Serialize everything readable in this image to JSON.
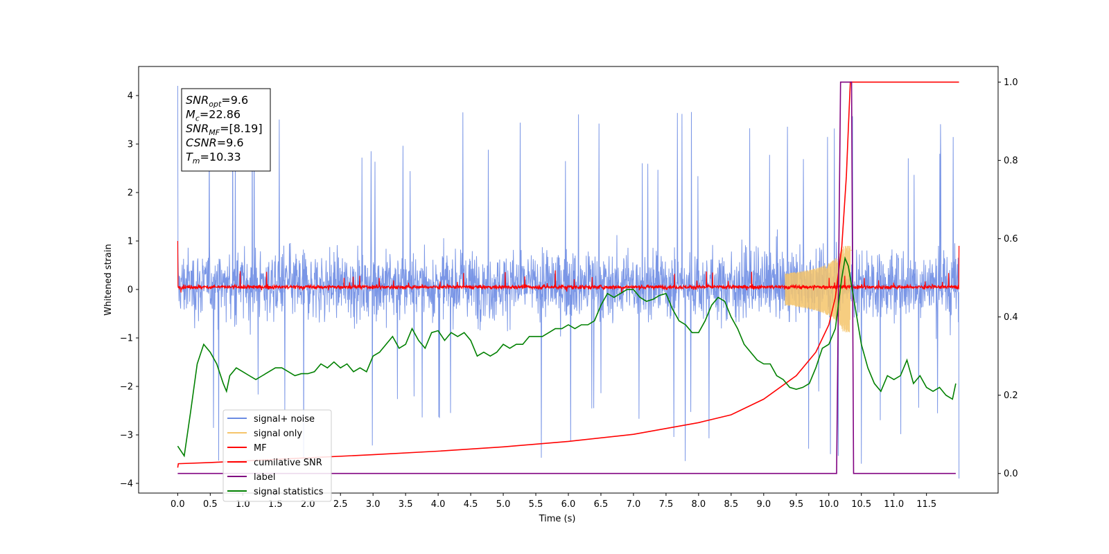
{
  "chart_data": {
    "type": "line",
    "title": "",
    "xlabel": "Time (s)",
    "ylabel_left": "Whitened strain",
    "ylabel_right": "",
    "xlim": [
      -0.6,
      12.6
    ],
    "ylim_left": [
      -4.2,
      4.6
    ],
    "ylim_right": [
      -0.05,
      1.04
    ],
    "x_ticks": [
      0.0,
      0.5,
      1.0,
      1.5,
      2.0,
      2.5,
      3.0,
      3.5,
      4.0,
      4.5,
      5.0,
      5.5,
      6.0,
      6.5,
      7.0,
      7.5,
      8.0,
      8.5,
      9.0,
      9.5,
      10.0,
      10.5,
      11.0,
      11.5
    ],
    "x_tick_labels": [
      "0.0",
      "0.5",
      "1.0",
      "1.5",
      "2.0",
      "2.5",
      "3.0",
      "3.5",
      "4.0",
      "4.5",
      "5.0",
      "5.5",
      "6.0",
      "6.5",
      "7.0",
      "7.5",
      "8.0",
      "8.5",
      "9.0",
      "9.5",
      "10.0",
      "10.5",
      "11.0",
      "11.5"
    ],
    "y_ticks_left": [
      -4,
      -3,
      -2,
      -1,
      0,
      1,
      2,
      3,
      4
    ],
    "y_tick_labels_left": [
      "−4",
      "−3",
      "−2",
      "−1",
      "0",
      "1",
      "2",
      "3",
      "4"
    ],
    "y_ticks_right": [
      0.0,
      0.2,
      0.4,
      0.6,
      0.8,
      1.0
    ],
    "y_tick_labels_right": [
      "0.0",
      "0.2",
      "0.4",
      "0.6",
      "0.8",
      "1.0"
    ],
    "grid": false,
    "legend_position": "lower-left",
    "annotation": {
      "lines": [
        {
          "base": "SNR",
          "sub": "opt",
          "value": "=9.6"
        },
        {
          "base": "M",
          "sub": "c",
          "value": "=22.86"
        },
        {
          "base": "SNR",
          "sub": "MF",
          "value": "=[8.19]"
        },
        {
          "base": "CSNR",
          "sub": "",
          "value": "=9.6"
        },
        {
          "base": "T",
          "sub": "m",
          "value": "=10.33"
        }
      ]
    },
    "series": [
      {
        "name": "signal+ noise",
        "axis": "left",
        "color": "#6b8be3",
        "kind": "noise",
        "x_range": [
          0.0,
          12.0
        ],
        "typical_range": [
          -1.9,
          2.1
        ],
        "extreme_range": [
          -3.9,
          4.2
        ]
      },
      {
        "name": "signal only",
        "axis": "left",
        "color": "#f5c46a",
        "kind": "chirp",
        "merger_time": 10.33,
        "peak_amplitude": 0.9
      },
      {
        "name": "MF",
        "axis": "left",
        "color": "#ff0000",
        "kind": "noise",
        "x_range": [
          0.0,
          12.0
        ],
        "typical_range": [
          -0.2,
          0.3
        ],
        "extreme_range": [
          -0.25,
          1.0
        ]
      },
      {
        "name": "cumilative SNR",
        "axis": "right",
        "color": "#ff0000",
        "x": [
          0.0,
          0.01,
          0.5,
          1.0,
          2.0,
          3.0,
          4.0,
          5.0,
          6.0,
          7.0,
          8.0,
          8.5,
          9.0,
          9.5,
          9.8,
          10.0,
          10.1,
          10.2,
          10.27,
          10.3,
          10.33,
          10.35,
          11.0,
          11.5,
          12.0
        ],
        "y": [
          0.015,
          0.025,
          0.028,
          0.032,
          0.04,
          0.048,
          0.057,
          0.068,
          0.082,
          0.1,
          0.13,
          0.15,
          0.19,
          0.25,
          0.31,
          0.38,
          0.45,
          0.58,
          0.76,
          0.88,
          1.0,
          1.0,
          1.0,
          1.0,
          1.0
        ]
      },
      {
        "name": "label",
        "axis": "right",
        "color": "#800080",
        "x": [
          0.0,
          10.12,
          10.18,
          10.35,
          10.38,
          11.95
        ],
        "y": [
          0.0,
          0.0,
          1.0,
          1.0,
          0.0,
          0.0
        ]
      },
      {
        "name": "signal statistics",
        "axis": "right",
        "color": "#008000",
        "x": [
          0.0,
          0.1,
          0.2,
          0.3,
          0.4,
          0.5,
          0.6,
          0.7,
          0.75,
          0.8,
          0.9,
          1.0,
          1.1,
          1.2,
          1.3,
          1.4,
          1.5,
          1.6,
          1.7,
          1.8,
          1.9,
          2.0,
          2.1,
          2.2,
          2.3,
          2.4,
          2.5,
          2.6,
          2.7,
          2.8,
          2.9,
          3.0,
          3.1,
          3.2,
          3.3,
          3.4,
          3.5,
          3.6,
          3.7,
          3.8,
          3.9,
          4.0,
          4.1,
          4.2,
          4.3,
          4.4,
          4.5,
          4.6,
          4.7,
          4.8,
          4.9,
          5.0,
          5.1,
          5.2,
          5.3,
          5.4,
          5.5,
          5.6,
          5.7,
          5.8,
          5.9,
          6.0,
          6.1,
          6.2,
          6.3,
          6.4,
          6.5,
          6.6,
          6.7,
          6.8,
          6.9,
          7.0,
          7.1,
          7.2,
          7.3,
          7.4,
          7.5,
          7.6,
          7.7,
          7.8,
          7.9,
          8.0,
          8.1,
          8.2,
          8.3,
          8.4,
          8.5,
          8.6,
          8.7,
          8.8,
          8.9,
          9.0,
          9.1,
          9.2,
          9.3,
          9.4,
          9.5,
          9.6,
          9.7,
          9.8,
          9.9,
          10.0,
          10.1,
          10.2,
          10.25,
          10.3,
          10.4,
          10.5,
          10.6,
          10.7,
          10.8,
          10.9,
          11.0,
          11.1,
          11.2,
          11.3,
          11.4,
          11.5,
          11.6,
          11.7,
          11.8,
          11.9,
          11.95
        ],
        "y": [
          0.07,
          0.045,
          0.16,
          0.28,
          0.33,
          0.31,
          0.28,
          0.23,
          0.21,
          0.25,
          0.27,
          0.26,
          0.25,
          0.24,
          0.25,
          0.26,
          0.27,
          0.27,
          0.26,
          0.25,
          0.255,
          0.255,
          0.26,
          0.28,
          0.27,
          0.285,
          0.27,
          0.28,
          0.26,
          0.27,
          0.26,
          0.3,
          0.31,
          0.33,
          0.35,
          0.32,
          0.33,
          0.37,
          0.34,
          0.32,
          0.36,
          0.365,
          0.34,
          0.36,
          0.35,
          0.36,
          0.34,
          0.3,
          0.31,
          0.3,
          0.31,
          0.33,
          0.32,
          0.33,
          0.33,
          0.35,
          0.35,
          0.35,
          0.36,
          0.37,
          0.37,
          0.38,
          0.37,
          0.38,
          0.38,
          0.39,
          0.43,
          0.46,
          0.45,
          0.46,
          0.47,
          0.47,
          0.45,
          0.44,
          0.445,
          0.455,
          0.46,
          0.42,
          0.39,
          0.38,
          0.36,
          0.36,
          0.39,
          0.43,
          0.45,
          0.44,
          0.4,
          0.37,
          0.33,
          0.31,
          0.29,
          0.28,
          0.28,
          0.25,
          0.24,
          0.22,
          0.215,
          0.22,
          0.23,
          0.27,
          0.32,
          0.33,
          0.37,
          0.5,
          0.55,
          0.53,
          0.43,
          0.33,
          0.27,
          0.23,
          0.21,
          0.25,
          0.24,
          0.25,
          0.29,
          0.23,
          0.25,
          0.22,
          0.21,
          0.22,
          0.2,
          0.19,
          0.23
        ]
      }
    ]
  }
}
